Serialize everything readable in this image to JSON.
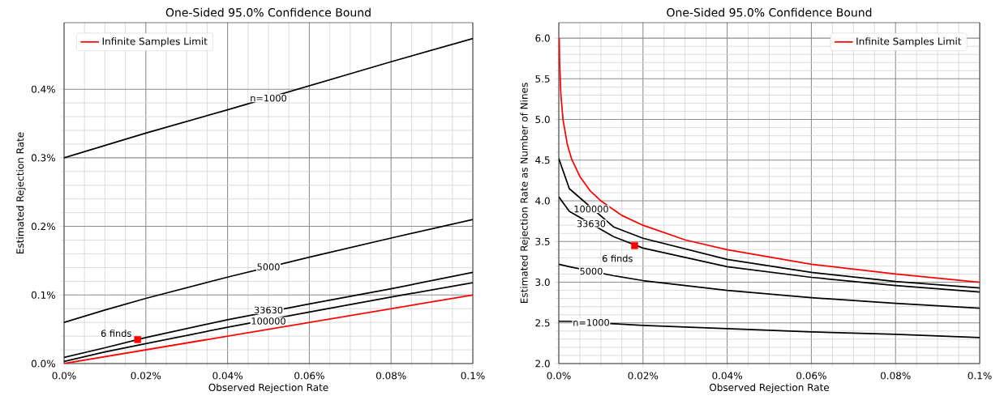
{
  "chart_data": [
    {
      "type": "line",
      "title": "One-Sided 95.0% Confidence Bound",
      "xlabel": "Observed Rejection Rate",
      "ylabel": "Estimated Rejection Rate",
      "xlim": [
        0,
        0.1
      ],
      "ylim": [
        0,
        0.497
      ],
      "xticks": [
        {
          "value": 0,
          "label": "0.0%"
        },
        {
          "value": 0.02,
          "label": "0.02%"
        },
        {
          "value": 0.04,
          "label": "0.04%"
        },
        {
          "value": 0.06,
          "label": "0.06%"
        },
        {
          "value": 0.08,
          "label": "0.08%"
        },
        {
          "value": 0.1,
          "label": "0.1%"
        }
      ],
      "yticks": [
        {
          "value": 0,
          "label": "0.0%"
        },
        {
          "value": 0.1,
          "label": "0.1%"
        },
        {
          "value": 0.2,
          "label": "0.2%"
        },
        {
          "value": 0.3,
          "label": "0.3%"
        },
        {
          "value": 0.4,
          "label": "0.4%"
        }
      ],
      "grid": true,
      "legend": "top left",
      "series": [
        {
          "color": "#000000",
          "x": [
            0,
            0.01,
            0.02,
            0.04,
            0.06,
            0.08,
            0.1
          ],
          "values": [
            0.3,
            0.318,
            0.336,
            0.37,
            0.405,
            0.44,
            0.474
          ]
        },
        {
          "color": "#000000",
          "x": [
            0,
            0.01,
            0.02,
            0.04,
            0.06,
            0.08,
            0.1
          ],
          "values": [
            0.06,
            0.078,
            0.095,
            0.126,
            0.155,
            0.183,
            0.21
          ]
        },
        {
          "color": "#000000",
          "x": [
            0,
            0.01,
            0.02,
            0.04,
            0.06,
            0.08,
            0.1
          ],
          "values": [
            0.009,
            0.023,
            0.038,
            0.064,
            0.087,
            0.109,
            0.133
          ]
        },
        {
          "color": "#000000",
          "x": [
            0,
            0.01,
            0.02,
            0.04,
            0.06,
            0.08,
            0.1
          ],
          "values": [
            0.003,
            0.017,
            0.029,
            0.053,
            0.075,
            0.097,
            0.118
          ]
        },
        {
          "name": "Infinite Samples Limit",
          "color": "#ff0000",
          "x": [
            0,
            0.1
          ],
          "values": [
            0,
            0.1
          ]
        },
        {
          "type": "scatter",
          "marker": "square",
          "color": "#ff0000",
          "x": [
            0.018
          ],
          "values": [
            0.035
          ]
        }
      ],
      "annotations": [
        {
          "text": "n=1000",
          "x": 0.05,
          "y": 0.387
        },
        {
          "text": "5000",
          "x": 0.05,
          "y": 0.141
        },
        {
          "text": "33630",
          "x": 0.05,
          "y": 0.078
        },
        {
          "text": "100000",
          "x": 0.05,
          "y": 0.062
        },
        {
          "text": "6 finds",
          "x": 0.018,
          "y": 0.035
        }
      ]
    },
    {
      "type": "line",
      "title": "One-Sided 95.0% Confidence Bound",
      "xlabel": "Observed Rejection Rate",
      "ylabel": "Estimated Rejection Rate as Number of Nines",
      "xlim": [
        0,
        0.1
      ],
      "ylim": [
        2,
        6.19
      ],
      "xticks": [
        {
          "value": 0,
          "label": "0.0%"
        },
        {
          "value": 0.02,
          "label": "0.02%"
        },
        {
          "value": 0.04,
          "label": "0.04%"
        },
        {
          "value": 0.06,
          "label": "0.06%"
        },
        {
          "value": 0.08,
          "label": "0.08%"
        },
        {
          "value": 0.1,
          "label": "0.1%"
        }
      ],
      "yticks": [
        {
          "value": 2,
          "label": "2.0"
        },
        {
          "value": 2.5,
          "label": "2.5"
        },
        {
          "value": 3,
          "label": "3.0"
        },
        {
          "value": 3.5,
          "label": "3.5"
        },
        {
          "value": 4,
          "label": "4.0"
        },
        {
          "value": 4.5,
          "label": "4.5"
        },
        {
          "value": 5,
          "label": "5.0"
        },
        {
          "value": 5.5,
          "label": "5.5"
        },
        {
          "value": 6,
          "label": "6.0"
        }
      ],
      "grid": true,
      "legend": "top right",
      "series": [
        {
          "color": "#000000",
          "x": [
            0,
            0.0025,
            0.013,
            0.02,
            0.04,
            0.06,
            0.08,
            0.1
          ],
          "values": [
            2.52,
            2.52,
            2.49,
            2.47,
            2.43,
            2.39,
            2.36,
            2.32
          ]
        },
        {
          "color": "#000000",
          "x": [
            0,
            0.0025,
            0.013,
            0.02,
            0.04,
            0.06,
            0.08,
            0.1
          ],
          "values": [
            3.22,
            3.19,
            3.08,
            3.02,
            2.9,
            2.81,
            2.74,
            2.68
          ]
        },
        {
          "color": "#000000",
          "x": [
            0,
            0.0025,
            0.013,
            0.02,
            0.04,
            0.06,
            0.08,
            0.1
          ],
          "values": [
            4.05,
            3.87,
            3.56,
            3.42,
            3.19,
            3.06,
            2.96,
            2.88
          ]
        },
        {
          "color": "#000000",
          "x": [
            0,
            0.0025,
            0.013,
            0.02,
            0.04,
            0.06,
            0.08,
            0.1
          ],
          "values": [
            4.52,
            4.15,
            3.68,
            3.54,
            3.28,
            3.12,
            3.01,
            2.93
          ]
        },
        {
          "name": "Infinite Samples Limit",
          "color": "#ff0000",
          "x": [
            0.0001,
            0.0002,
            0.0005,
            0.001,
            0.002,
            0.003,
            0.005,
            0.0075,
            0.01,
            0.015,
            0.02,
            0.03,
            0.04,
            0.06,
            0.08,
            0.1
          ],
          "values": [
            6,
            5.7,
            5.3,
            5,
            4.7,
            4.52,
            4.3,
            4.12,
            4,
            3.82,
            3.7,
            3.52,
            3.4,
            3.22,
            3.1,
            3
          ]
        },
        {
          "type": "scatter",
          "marker": "square",
          "color": "#ff0000",
          "x": [
            0.018
          ],
          "values": [
            3.45
          ]
        }
      ],
      "annotations": [
        {
          "text": "n=1000",
          "x": 0.0077,
          "y": 2.505
        },
        {
          "text": "5000",
          "x": 0.0077,
          "y": 3.135
        },
        {
          "text": "33630",
          "x": 0.0077,
          "y": 3.72
        },
        {
          "text": "100000",
          "x": 0.0077,
          "y": 3.9
        },
        {
          "text": "6 finds",
          "x": 0.018,
          "y": 3.45
        }
      ]
    }
  ]
}
